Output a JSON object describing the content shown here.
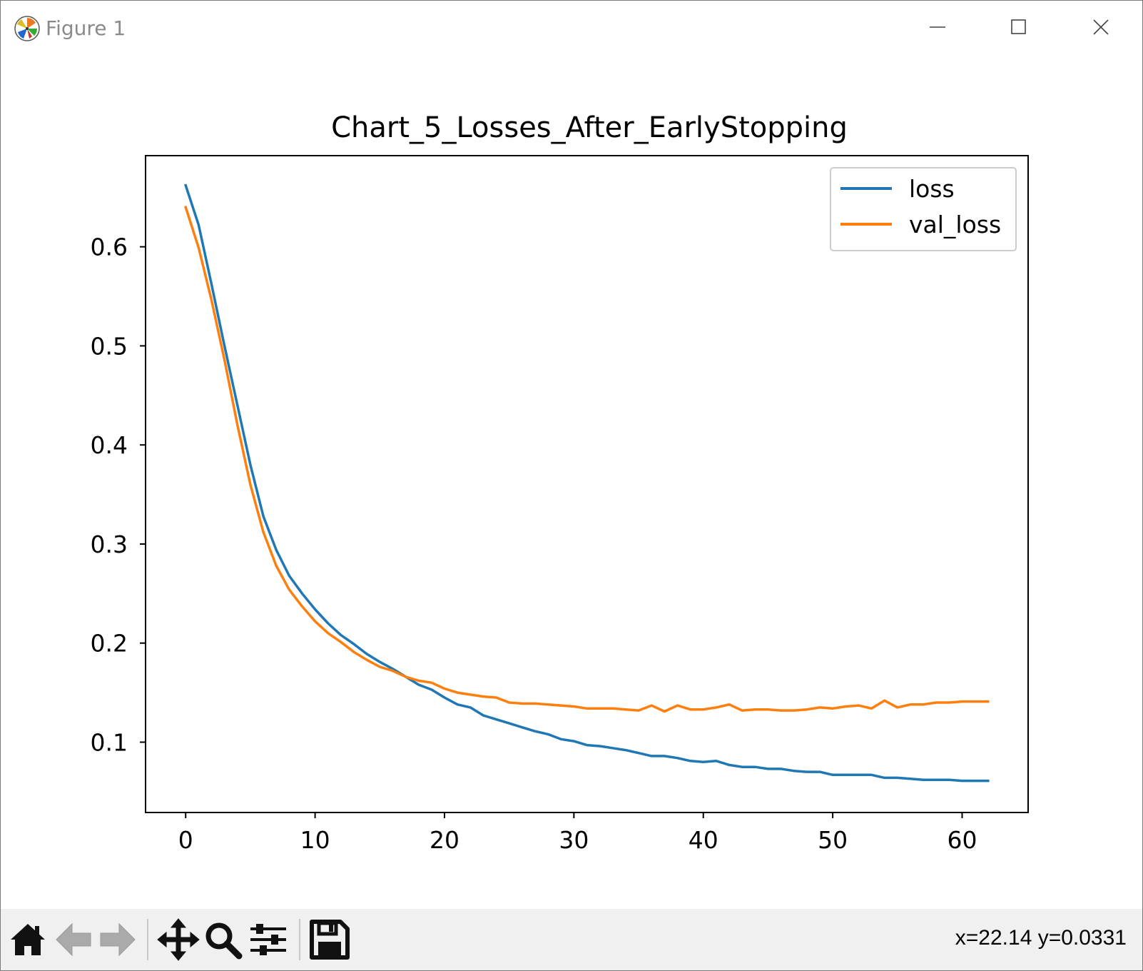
{
  "window": {
    "title": "Figure 1",
    "icon": "matplotlib-logo-icon",
    "controls": [
      "minimize-icon",
      "maximize-icon",
      "close-icon"
    ]
  },
  "toolbar": {
    "buttons": [
      "home-icon",
      "back-arrow-icon",
      "forward-arrow-icon",
      "pan-move-icon",
      "zoom-magnifier-icon",
      "configure-subplots-icon",
      "save-floppy-icon"
    ],
    "coordinates": "x=22.14 y=0.0331"
  },
  "chart_data": {
    "type": "line",
    "title": "Chart_5_Losses_After_EarlyStopping",
    "xlabel": "",
    "ylabel": "",
    "xlim": [
      -3.1,
      65.1
    ],
    "ylim": [
      0.029,
      0.692
    ],
    "xticks": [
      0,
      10,
      20,
      30,
      40,
      50,
      60
    ],
    "xtick_labels": [
      "0",
      "10",
      "20",
      "30",
      "40",
      "50",
      "60"
    ],
    "yticks": [
      0.1,
      0.2,
      0.3,
      0.4,
      0.5,
      0.6
    ],
    "ytick_labels": [
      "0.1",
      "0.2",
      "0.3",
      "0.4",
      "0.5",
      "0.6"
    ],
    "grid": false,
    "legend_position": "upper right",
    "x": [
      0,
      1,
      2,
      3,
      4,
      5,
      6,
      7,
      8,
      9,
      10,
      11,
      12,
      13,
      14,
      15,
      16,
      17,
      18,
      19,
      20,
      21,
      22,
      23,
      24,
      25,
      26,
      27,
      28,
      29,
      30,
      31,
      32,
      33,
      34,
      35,
      36,
      37,
      38,
      39,
      40,
      41,
      42,
      43,
      44,
      45,
      46,
      47,
      48,
      49,
      50,
      51,
      52,
      53,
      54,
      55,
      56,
      57,
      58,
      59,
      60,
      61,
      62
    ],
    "series": [
      {
        "name": "loss",
        "color": "#1f77b4",
        "values": [
          0.662,
          0.622,
          0.562,
          0.5,
          0.44,
          0.38,
          0.328,
          0.294,
          0.268,
          0.25,
          0.234,
          0.22,
          0.208,
          0.199,
          0.189,
          0.181,
          0.174,
          0.166,
          0.158,
          0.153,
          0.145,
          0.138,
          0.135,
          0.127,
          0.123,
          0.119,
          0.115,
          0.111,
          0.108,
          0.103,
          0.101,
          0.097,
          0.096,
          0.094,
          0.092,
          0.089,
          0.086,
          0.086,
          0.084,
          0.081,
          0.08,
          0.081,
          0.077,
          0.075,
          0.075,
          0.073,
          0.073,
          0.071,
          0.07,
          0.07,
          0.067,
          0.067,
          0.067,
          0.067,
          0.064,
          0.064,
          0.063,
          0.062,
          0.062,
          0.062,
          0.061,
          0.061,
          0.061
        ]
      },
      {
        "name": "val_loss",
        "color": "#ff7f0e",
        "values": [
          0.64,
          0.599,
          0.546,
          0.486,
          0.42,
          0.36,
          0.312,
          0.278,
          0.254,
          0.237,
          0.222,
          0.21,
          0.201,
          0.191,
          0.183,
          0.176,
          0.172,
          0.166,
          0.162,
          0.16,
          0.154,
          0.15,
          0.148,
          0.146,
          0.145,
          0.14,
          0.139,
          0.139,
          0.138,
          0.137,
          0.136,
          0.134,
          0.134,
          0.134,
          0.133,
          0.132,
          0.137,
          0.131,
          0.137,
          0.133,
          0.133,
          0.135,
          0.138,
          0.132,
          0.133,
          0.133,
          0.132,
          0.132,
          0.133,
          0.135,
          0.134,
          0.136,
          0.137,
          0.134,
          0.142,
          0.135,
          0.138,
          0.138,
          0.14,
          0.14,
          0.141,
          0.141,
          0.141
        ]
      }
    ]
  }
}
